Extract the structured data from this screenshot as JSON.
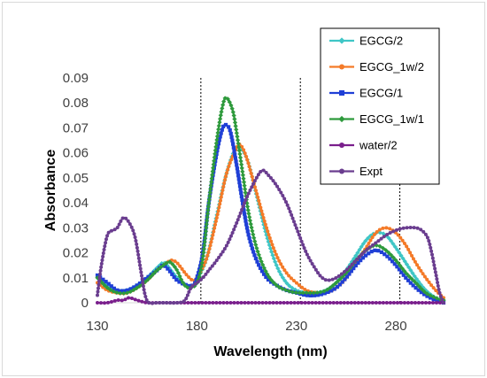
{
  "chart_data": {
    "type": "line",
    "title": "",
    "xlabel": "Wavelength (nm)",
    "ylabel": "Absorbance",
    "xlim": [
      130,
      304
    ],
    "ylim": [
      0,
      0.09
    ],
    "x_ticks": [
      130,
      180,
      230,
      280
    ],
    "x_tick_labels": [
      "130",
      "180",
      "230",
      "280"
    ],
    "y_ticks": [
      0,
      0.01,
      0.02,
      0.03,
      0.04,
      0.05,
      0.06,
      0.07,
      0.08,
      0.09
    ],
    "y_tick_labels": [
      "0",
      "0.01",
      "0.02",
      "0.03",
      "0.04",
      "0.05",
      "0.06",
      "0.07",
      "0.08",
      "0.09"
    ],
    "grid": false,
    "legend_position": "top-right",
    "vertical_reference_lines_x": [
      182,
      232,
      282
    ],
    "series": [
      {
        "name": "EGCG/2",
        "color": "#3fc6c6",
        "marker": "diamond",
        "x": [
          130,
          135,
          140,
          145,
          150,
          155,
          160,
          163,
          165,
          170,
          175,
          178,
          180,
          185,
          190,
          195,
          200,
          205,
          210,
          215,
          220,
          225,
          230,
          235,
          240,
          245,
          250,
          255,
          260,
          265,
          270,
          275,
          280,
          285,
          290,
          295,
          300,
          304
        ],
        "values": [
          0.01,
          0.007,
          0.005,
          0.005,
          0.007,
          0.01,
          0.014,
          0.016,
          0.015,
          0.01,
          0.007,
          0.007,
          0.009,
          0.018,
          0.035,
          0.052,
          0.062,
          0.058,
          0.043,
          0.027,
          0.015,
          0.008,
          0.005,
          0.004,
          0.004,
          0.005,
          0.008,
          0.013,
          0.019,
          0.025,
          0.028,
          0.027,
          0.022,
          0.016,
          0.01,
          0.005,
          0.002,
          0.001
        ]
      },
      {
        "name": "EGCG_1w/2",
        "color": "#f47a28",
        "marker": "circle",
        "x": [
          130,
          135,
          140,
          145,
          150,
          155,
          160,
          165,
          167,
          170,
          175,
          178,
          180,
          185,
          190,
          195,
          200,
          202,
          205,
          210,
          215,
          220,
          225,
          230,
          235,
          240,
          245,
          250,
          255,
          260,
          265,
          270,
          275,
          280,
          285,
          290,
          295,
          300,
          304
        ],
        "values": [
          0.008,
          0.005,
          0.004,
          0.004,
          0.006,
          0.009,
          0.013,
          0.016,
          0.017,
          0.016,
          0.011,
          0.009,
          0.01,
          0.018,
          0.034,
          0.052,
          0.062,
          0.063,
          0.058,
          0.044,
          0.03,
          0.019,
          0.012,
          0.008,
          0.005,
          0.004,
          0.004,
          0.006,
          0.01,
          0.016,
          0.022,
          0.028,
          0.03,
          0.028,
          0.023,
          0.016,
          0.01,
          0.005,
          0.002
        ]
      },
      {
        "name": "EGCG/1",
        "color": "#1f3fd6",
        "marker": "square",
        "x": [
          130,
          135,
          140,
          145,
          150,
          155,
          160,
          163,
          166,
          170,
          175,
          178,
          180,
          183,
          186,
          190,
          193,
          195,
          197,
          200,
          203,
          206,
          210,
          215,
          220,
          225,
          230,
          235,
          240,
          245,
          250,
          255,
          260,
          265,
          270,
          275,
          280,
          285,
          290,
          295,
          300,
          304
        ],
        "values": [
          0.011,
          0.008,
          0.005,
          0.005,
          0.007,
          0.01,
          0.013,
          0.015,
          0.013,
          0.009,
          0.007,
          0.007,
          0.01,
          0.02,
          0.04,
          0.06,
          0.07,
          0.071,
          0.068,
          0.055,
          0.04,
          0.027,
          0.017,
          0.01,
          0.007,
          0.005,
          0.004,
          0.003,
          0.003,
          0.004,
          0.006,
          0.01,
          0.015,
          0.019,
          0.021,
          0.019,
          0.015,
          0.01,
          0.006,
          0.003,
          0.001,
          0.0
        ]
      },
      {
        "name": "EGCG_1w/1",
        "color": "#2e9a3c",
        "marker": "diamond",
        "x": [
          130,
          135,
          140,
          145,
          150,
          155,
          160,
          165,
          167,
          170,
          173,
          176,
          180,
          183,
          186,
          190,
          193,
          195,
          198,
          200,
          203,
          206,
          210,
          215,
          220,
          225,
          230,
          235,
          240,
          245,
          250,
          255,
          260,
          265,
          270,
          275,
          280,
          285,
          290,
          295,
          300,
          304
        ],
        "values": [
          0.01,
          0.006,
          0.004,
          0.004,
          0.006,
          0.009,
          0.013,
          0.016,
          0.016,
          0.013,
          0.008,
          0.006,
          0.008,
          0.018,
          0.04,
          0.065,
          0.079,
          0.082,
          0.077,
          0.068,
          0.052,
          0.036,
          0.022,
          0.012,
          0.007,
          0.005,
          0.004,
          0.004,
          0.004,
          0.005,
          0.008,
          0.012,
          0.017,
          0.021,
          0.023,
          0.021,
          0.017,
          0.012,
          0.008,
          0.004,
          0.002,
          0.001
        ]
      },
      {
        "name": "water/2",
        "color": "#7a1f8c",
        "marker": "circle",
        "x": [
          130,
          135,
          140,
          143,
          146,
          150,
          155,
          160,
          170,
          180,
          190,
          200,
          210,
          220,
          230,
          240,
          250,
          260,
          270,
          280,
          290,
          300,
          304
        ],
        "values": [
          0.0,
          0.0,
          0.001,
          0.001,
          0.002,
          0.001,
          0.0,
          0.0,
          0.0,
          0.0,
          0.0,
          0.0,
          0.0,
          0.0,
          0.0,
          0.0,
          0.0,
          0.0,
          0.0,
          0.0,
          0.0,
          0.0,
          0.0
        ]
      },
      {
        "name": "Expt",
        "color": "#6a3d8f",
        "marker": "circle",
        "x": [
          130,
          132,
          135,
          138,
          140,
          143,
          146,
          149,
          152,
          154,
          156,
          160,
          165,
          170,
          174,
          177,
          180,
          183,
          186,
          190,
          195,
          200,
          205,
          210,
          213,
          216,
          220,
          225,
          230,
          235,
          240,
          243,
          246,
          250,
          255,
          260,
          265,
          270,
          275,
          280,
          285,
          290,
          293,
          296,
          298,
          300,
          302,
          304
        ],
        "values": [
          0.003,
          0.015,
          0.027,
          0.029,
          0.03,
          0.034,
          0.032,
          0.026,
          0.012,
          0.003,
          0.0,
          0.0,
          0.0,
          0.0,
          0.001,
          0.006,
          0.008,
          0.01,
          0.013,
          0.017,
          0.023,
          0.032,
          0.042,
          0.05,
          0.053,
          0.051,
          0.047,
          0.04,
          0.03,
          0.02,
          0.013,
          0.01,
          0.009,
          0.01,
          0.013,
          0.017,
          0.021,
          0.024,
          0.027,
          0.029,
          0.03,
          0.03,
          0.029,
          0.026,
          0.02,
          0.012,
          0.004,
          0.0
        ]
      }
    ]
  }
}
